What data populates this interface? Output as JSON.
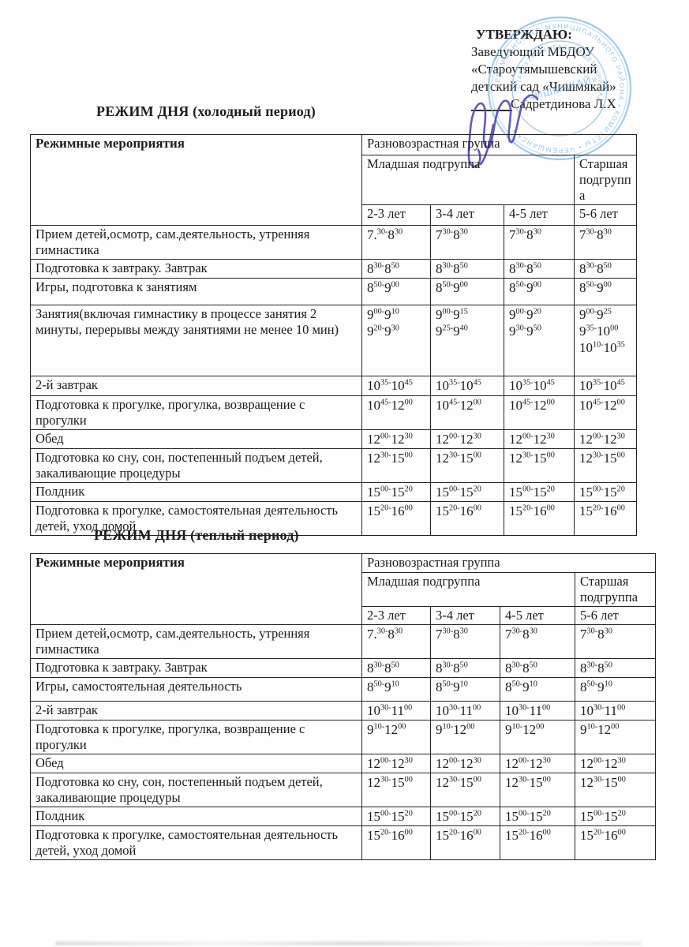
{
  "page": {
    "approval": {
      "lines": [
        "УТВЕРЖДАЮ:",
        "Заведующий МБДОУ",
        "«Староутямышевский",
        "детский сад «Чишмякай»",
        "Садретдинова Л.Х"
      ]
    },
    "stamp": {
      "color": "#74b2e2",
      "ring_outer_text": "ЧЕРЕМШАНСКОГО МУНИЦИПАЛЬНОГО РАЙОНА • КОМИТЕТЫ • ЧЕРЕМШАНСК •",
      "ring_inner_text": "СТАРОУТЯМЫШЕВСКИЙ ДЕТСКИЙ САД",
      "center_text": "«ЧИШМЯКАЙ»"
    },
    "signature_color": "#5b50b5"
  },
  "tables": [
    {
      "title": "РЕЖИМ ДНЯ  (холодный период)",
      "header": {
        "col1": "Режимные мероприятия",
        "group": "Разновозрастная группа",
        "younger": "Младшая подгруппа",
        "older": "Старшая подгруппа",
        "ages": [
          "2-3 лет",
          "3-4 лет",
          "4-5 лет",
          "5-6 лет"
        ]
      },
      "rows": [
        {
          "activity": "Прием детей,осмотр, сам.деятельность, утренняя гимнастика",
          "times": [
            [
              "7.^30-^8^30"
            ],
            [
              "7^30-^8^30"
            ],
            [
              "7^30-^8^30"
            ],
            [
              "7^30-^8^30"
            ]
          ]
        },
        {
          "activity": "Подготовка к завтраку. Завтрак",
          "times": [
            [
              "8^30-^8^50"
            ],
            [
              "8^30-^8^50"
            ],
            [
              "8^30-^8^50"
            ],
            [
              "8^30-^8^50"
            ]
          ]
        },
        {
          "activity": "Игры, подготовка к занятиям",
          "times": [
            [
              "8^50-^9^00"
            ],
            [
              "8^50-^9^00"
            ],
            [
              "8^50-^9^00"
            ],
            [
              "8^50-^9^00"
            ]
          ]
        },
        {
          "activity": "Занятия(включая гимнастику в процессе занятия 2 минуты, перерывы между занятиями не менее 10 мин)",
          "times": [
            [
              "9^00-^9^10",
              "9^20-^9^30"
            ],
            [
              "9^00-^9^15",
              "9^25-^9^40"
            ],
            [
              "9^00-^9^20",
              "9^30-^9^50"
            ],
            [
              "9^00-^9^25",
              "9^35-^10^00",
              "10^10-^10^35"
            ]
          ]
        },
        {
          "activity": "2-й завтрак",
          "times": [
            [
              "10^35-^10^45"
            ],
            [
              "10^35-^10^45"
            ],
            [
              "10^35-^10^45"
            ],
            [
              "10^35-^10^45"
            ]
          ]
        },
        {
          "activity": "Подготовка к прогулке, прогулка, возвращение с прогулки",
          "times": [
            [
              "10^45-^12^00"
            ],
            [
              "10^45-^12^00"
            ],
            [
              "10^45-^12^00"
            ],
            [
              "10^45-^12^00"
            ]
          ]
        },
        {
          "activity": "Обед",
          "times": [
            [
              "12^00-^12^30"
            ],
            [
              "12^00-^12^30"
            ],
            [
              "12^00-^12^30"
            ],
            [
              "12^00-^12^30"
            ]
          ]
        },
        {
          "activity": "Подготовка ко сну, сон, постепенный подъем детей, закаливающие процедуры",
          "times": [
            [
              "12^30-^15^00"
            ],
            [
              "12^30-^15^00"
            ],
            [
              "12^30-^15^00"
            ],
            [
              "12^30-^15^00"
            ]
          ]
        },
        {
          "activity": "Полдник",
          "times": [
            [
              "15^00-^15^20"
            ],
            [
              "15^00-^15^20"
            ],
            [
              "15^00-^15^20"
            ],
            [
              "15^00-^15^20"
            ]
          ]
        },
        {
          "activity": "Подготовка к прогулке, самостоятельная деятельность детей, уход домой",
          "times": [
            [
              "15^20-^16^00"
            ],
            [
              "15^20-^16^00"
            ],
            [
              "15^20-^16^00"
            ],
            [
              "15^20-^16^00"
            ]
          ]
        }
      ]
    },
    {
      "title": "РЕЖИМ ДНЯ (теплый период)",
      "header": {
        "col1": "Режимные мероприятия",
        "group": "Разновозрастная группа",
        "younger": "Младшая подгруппа",
        "older": "Старшая подгруппа",
        "ages": [
          "2-3 лет",
          "3-4 лет",
          "4-5 лет",
          "5-6 лет"
        ]
      },
      "rows": [
        {
          "activity": "Прием детей,осмотр, сам.деятельность, утренняя гимнастика",
          "times": [
            [
              "7.^30-^8^30"
            ],
            [
              "7^30-^8^30"
            ],
            [
              "7^30-^8^30"
            ],
            [
              "7^30-^8^30"
            ]
          ]
        },
        {
          "activity": "Подготовка к завтраку. Завтрак",
          "times": [
            [
              "8^30-^8^50"
            ],
            [
              "8^30-^8^50"
            ],
            [
              "8^30-^8^50"
            ],
            [
              "8^30-^8^50"
            ]
          ]
        },
        {
          "activity": "Игры, самостоятельная деятельность",
          "times": [
            [
              "8^50-^9^10"
            ],
            [
              "8^50-^9^10"
            ],
            [
              "8^50-^9^10"
            ],
            [
              "8^50-^9^10"
            ]
          ]
        },
        {
          "activity": "2-й завтрак",
          "times": [
            [
              "10^30-^11^00"
            ],
            [
              "10^30-^11^00"
            ],
            [
              "10^30-^11^00"
            ],
            [
              "10^30-^11^00"
            ]
          ]
        },
        {
          "activity": "Подготовка к прогулке, прогулка, возвращение с прогулки",
          "times": [
            [
              "9^10-^12^00"
            ],
            [
              "9^10-^12^00"
            ],
            [
              "9^10-^12^00"
            ],
            [
              "9^10-^12^00"
            ]
          ]
        },
        {
          "activity": "Обед",
          "times": [
            [
              "12^00-^12^30"
            ],
            [
              "12^00-^12^30"
            ],
            [
              "12^00-^12^30"
            ],
            [
              "12^00-^12^30"
            ]
          ]
        },
        {
          "activity": "Подготовка ко сну, сон, постепенный подъем детей, закаливающие процедуры",
          "times": [
            [
              "12^30-^15^00"
            ],
            [
              "12^30-^15^00"
            ],
            [
              "12^30-^15^00"
            ],
            [
              "12^30-^15^00"
            ]
          ]
        },
        {
          "activity": "Полдник",
          "times": [
            [
              "15^00-^15^20"
            ],
            [
              "15^00-^15^20"
            ],
            [
              "15^00-^15^20"
            ],
            [
              "15^00-^15^20"
            ]
          ]
        },
        {
          "activity": "Подготовка к прогулке, самостоятельная деятельность детей, уход домой",
          "times": [
            [
              "15^20-^16^00"
            ],
            [
              "15^20-^16^00"
            ],
            [
              "15^20-^16^00"
            ],
            [
              "15^20-^16^00"
            ]
          ]
        }
      ]
    }
  ]
}
